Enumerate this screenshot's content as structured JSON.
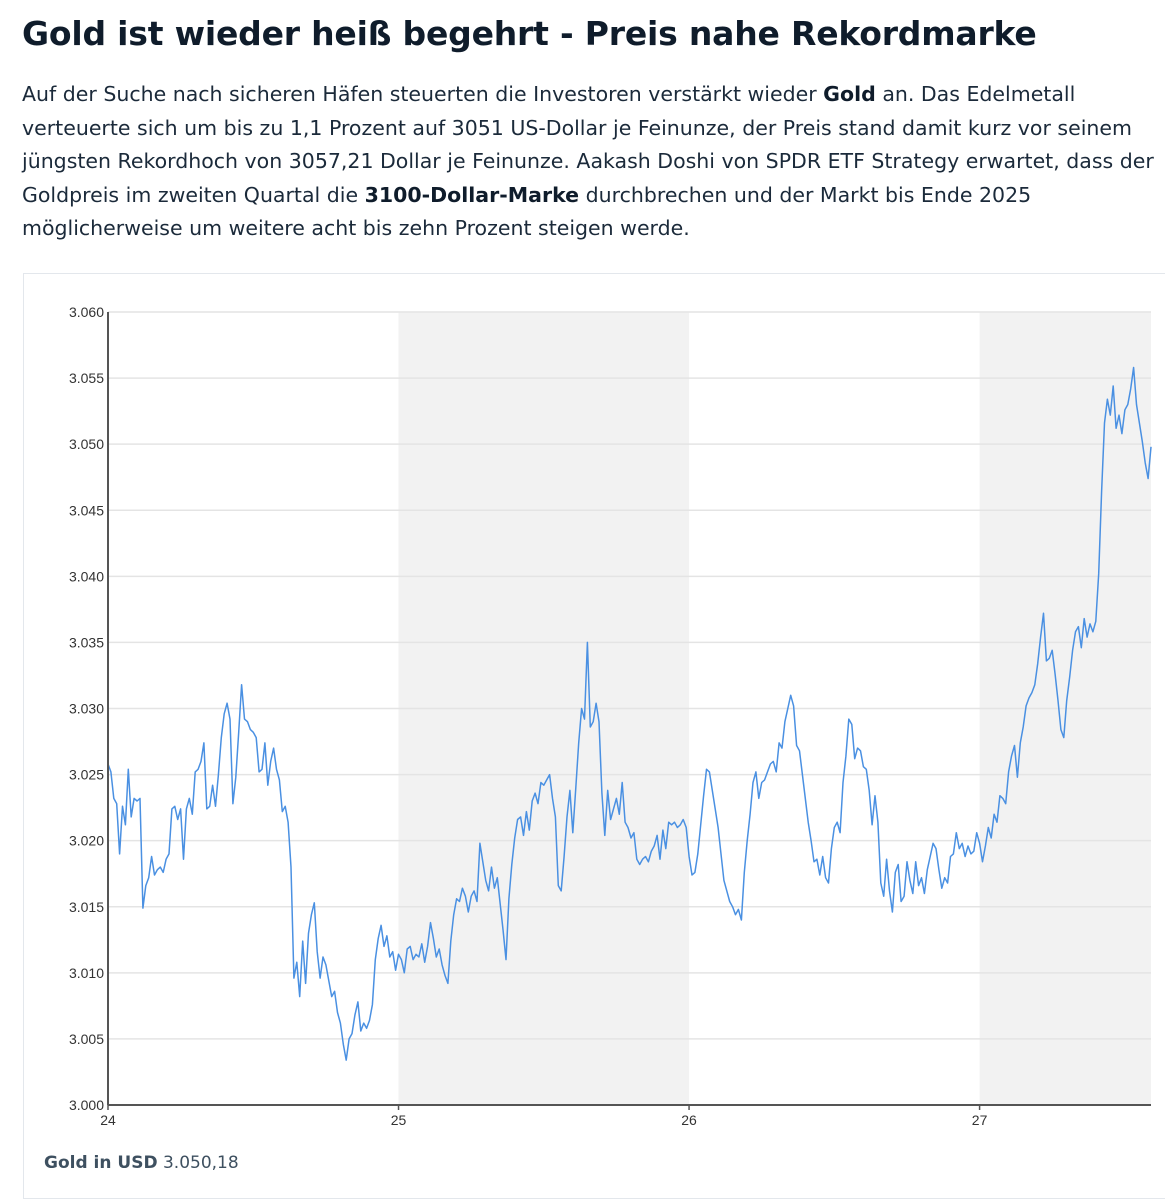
{
  "article": {
    "headline": "Gold ist wieder heiß begehrt - Preis nahe Rekordmarke",
    "lead_parts": [
      {
        "text": "Auf der Suche nach sicheren Häfen steuerten die Investoren verstärkt wieder ",
        "bold": false
      },
      {
        "text": "Gold",
        "bold": true
      },
      {
        "text": " an. Das Edelmetall verteuerte sich um bis zu 1,1 Prozent auf 3051 US-Dollar je Feinunze, der Preis stand damit kurz vor seinem jüngsten Rekordhoch von 3057,21 Dollar je Feinunze. Aakash Doshi von SPDR ETF Strategy erwartet, dass der Goldpreis im zweiten Quartal die ",
        "bold": false
      },
      {
        "text": "3100-Dollar-Marke",
        "bold": true
      },
      {
        "text": " durchbrechen und der Markt bis Ende 2025 möglicherweise um weitere acht bis zehn Prozent steigen werde.",
        "bold": false
      }
    ]
  },
  "caption": {
    "label": "Gold in USD",
    "value": "3.050,18"
  },
  "chart_data": {
    "type": "line",
    "title": "",
    "xlabel": "",
    "ylabel": "",
    "series_name": "Gold in USD",
    "line_color": "#4a90e2",
    "band_color": "#f2f2f2",
    "grid": true,
    "xlim": [
      24,
      27.59
    ],
    "ylim": [
      3000,
      3060
    ],
    "x_ticks": [
      24,
      25,
      26,
      27
    ],
    "x_tick_labels": [
      "24",
      "25",
      "26",
      "27"
    ],
    "y_ticks": [
      3000,
      3005,
      3010,
      3015,
      3020,
      3025,
      3030,
      3035,
      3040,
      3045,
      3050,
      3055,
      3060
    ],
    "y_tick_labels": [
      "3.000",
      "3.005",
      "3.010",
      "3.015",
      "3.020",
      "3.025",
      "3.030",
      "3.035",
      "3.040",
      "3.045",
      "3.050",
      "3.055",
      "3.060"
    ],
    "shaded_bands": [
      [
        25,
        26
      ],
      [
        27,
        27.59
      ]
    ],
    "x": [
      24.0,
      24.01,
      24.02,
      24.03,
      24.04,
      24.05,
      24.06,
      24.07,
      24.08,
      24.09,
      24.1,
      24.11,
      24.12,
      24.13,
      24.14,
      24.15,
      24.16,
      24.17,
      24.18,
      24.19,
      24.2,
      24.21,
      24.22,
      24.23,
      24.24,
      24.25,
      24.26,
      24.27,
      24.28,
      24.29,
      24.3,
      24.31,
      24.32,
      24.33,
      24.34,
      24.35,
      24.36,
      24.37,
      24.38,
      24.39,
      24.4,
      24.41,
      24.42,
      24.43,
      24.44,
      24.45,
      24.46,
      24.47,
      24.48,
      24.49,
      24.5,
      24.51,
      24.52,
      24.53,
      24.54,
      24.55,
      24.56,
      24.57,
      24.58,
      24.59,
      24.6,
      24.61,
      24.62,
      24.63,
      24.64,
      24.65,
      24.66,
      24.67,
      24.68,
      24.69,
      24.7,
      24.71,
      24.72,
      24.73,
      24.74,
      24.75,
      24.76,
      24.77,
      24.78,
      24.79,
      24.8,
      24.81,
      24.82,
      24.83,
      24.84,
      24.85,
      24.86,
      24.87,
      24.88,
      24.89,
      24.9,
      24.91,
      24.92,
      24.93,
      24.94,
      24.95,
      24.96,
      24.97,
      24.98,
      24.99,
      25.0,
      25.01,
      25.02,
      25.03,
      25.04,
      25.05,
      25.06,
      25.07,
      25.08,
      25.09,
      25.1,
      25.11,
      25.12,
      25.13,
      25.14,
      25.15,
      25.16,
      25.17,
      25.18,
      25.19,
      25.2,
      25.21,
      25.22,
      25.23,
      25.24,
      25.25,
      25.26,
      25.27,
      25.28,
      25.29,
      25.3,
      25.31,
      25.32,
      25.33,
      25.34,
      25.35,
      25.36,
      25.37,
      25.38,
      25.39,
      25.4,
      25.41,
      25.42,
      25.43,
      25.44,
      25.45,
      25.46,
      25.47,
      25.48,
      25.49,
      25.5,
      25.51,
      25.52,
      25.53,
      25.54,
      25.55,
      25.56,
      25.57,
      25.58,
      25.59,
      25.6,
      25.61,
      25.62,
      25.63,
      25.64,
      25.65,
      25.66,
      25.67,
      25.68,
      25.69,
      25.7,
      25.71,
      25.72,
      25.73,
      25.74,
      25.75,
      25.76,
      25.77,
      25.78,
      25.79,
      25.8,
      25.81,
      25.82,
      25.83,
      25.84,
      25.85,
      25.86,
      25.87,
      25.88,
      25.89,
      25.9,
      25.91,
      25.92,
      25.93,
      25.94,
      25.95,
      25.96,
      25.97,
      25.98,
      25.99,
      26.0,
      26.01,
      26.02,
      26.03,
      26.04,
      26.05,
      26.06,
      26.07,
      26.08,
      26.09,
      26.1,
      26.11,
      26.12,
      26.13,
      26.14,
      26.15,
      26.16,
      26.17,
      26.18,
      26.19,
      26.2,
      26.21,
      26.22,
      26.23,
      26.24,
      26.25,
      26.26,
      26.27,
      26.28,
      26.29,
      26.3,
      26.31,
      26.32,
      26.33,
      26.34,
      26.35,
      26.36,
      26.37,
      26.38,
      26.39,
      26.4,
      26.41,
      26.42,
      26.43,
      26.44,
      26.45,
      26.46,
      26.47,
      26.48,
      26.49,
      26.5,
      26.51,
      26.52,
      26.53,
      26.54,
      26.55,
      26.56,
      26.57,
      26.58,
      26.59,
      26.6,
      26.61,
      26.62,
      26.63,
      26.64,
      26.65,
      26.66,
      26.67,
      26.68,
      26.69,
      26.7,
      26.71,
      26.72,
      26.73,
      26.74,
      26.75,
      26.76,
      26.77,
      26.78,
      26.79,
      26.8,
      26.81,
      26.82,
      26.83,
      26.84,
      26.85,
      26.86,
      26.87,
      26.88,
      26.89,
      26.9,
      26.91,
      26.92,
      26.93,
      26.94,
      26.95,
      26.96,
      26.97,
      26.98,
      26.99,
      27.0,
      27.01,
      27.02,
      27.03,
      27.04,
      27.05,
      27.06,
      27.07,
      27.08,
      27.09,
      27.1,
      27.11,
      27.12,
      27.13,
      27.14,
      27.15,
      27.16,
      27.17,
      27.18,
      27.19,
      27.2,
      27.21,
      27.22,
      27.23,
      27.24,
      27.25,
      27.26,
      27.27,
      27.28,
      27.29,
      27.3,
      27.31,
      27.32,
      27.33,
      27.34,
      27.35,
      27.36,
      27.37,
      27.38,
      27.39,
      27.4,
      27.41,
      27.42,
      27.43,
      27.44,
      27.45,
      27.46,
      27.47,
      27.48,
      27.49,
      27.5,
      27.51,
      27.52,
      27.53,
      27.54,
      27.55,
      27.56,
      27.57,
      27.58,
      27.59
    ],
    "values": [
      3025.8,
      3025.2,
      3023.2,
      3022.8,
      3019.0,
      3022.6,
      3021.2,
      3025.4,
      3021.8,
      3023.2,
      3023.0,
      3023.2,
      3014.9,
      3016.6,
      3017.2,
      3018.8,
      3017.4,
      3017.8,
      3018.0,
      3017.6,
      3018.6,
      3019.0,
      3022.4,
      3022.6,
      3021.6,
      3022.4,
      3018.6,
      3022.4,
      3023.2,
      3022.0,
      3025.2,
      3025.4,
      3026.0,
      3027.4,
      3022.4,
      3022.6,
      3024.2,
      3022.6,
      3025.0,
      3027.8,
      3029.6,
      3030.4,
      3029.2,
      3022.8,
      3024.8,
      3028.2,
      3031.8,
      3029.2,
      3029.0,
      3028.4,
      3028.2,
      3027.8,
      3025.2,
      3025.4,
      3027.4,
      3024.2,
      3026.0,
      3027.0,
      3025.4,
      3024.6,
      3022.2,
      3022.6,
      3021.4,
      3018.0,
      3009.6,
      3010.8,
      3008.2,
      3012.4,
      3009.2,
      3013.0,
      3014.4,
      3015.3,
      3011.6,
      3009.6,
      3011.2,
      3010.6,
      3009.4,
      3008.2,
      3008.6,
      3007.0,
      3006.2,
      3004.6,
      3003.4,
      3005.0,
      3005.4,
      3006.8,
      3007.8,
      3005.6,
      3006.2,
      3005.8,
      3006.4,
      3007.6,
      3011.0,
      3012.6,
      3013.6,
      3012.0,
      3012.8,
      3011.2,
      3011.6,
      3010.2,
      3011.4,
      3011.0,
      3010.0,
      3011.8,
      3012.0,
      3011.0,
      3011.4,
      3011.2,
      3012.2,
      3010.8,
      3012.0,
      3013.8,
      3012.6,
      3011.2,
      3011.8,
      3010.6,
      3009.8,
      3009.2,
      3012.4,
      3014.4,
      3015.6,
      3015.4,
      3016.4,
      3015.8,
      3014.6,
      3015.8,
      3016.2,
      3015.4,
      3019.8,
      3018.4,
      3017.0,
      3016.2,
      3018.0,
      3016.4,
      3017.2,
      3015.2,
      3013.2,
      3011.0,
      3015.6,
      3018.2,
      3020.2,
      3021.6,
      3021.8,
      3020.4,
      3022.2,
      3020.8,
      3023.0,
      3023.6,
      3022.8,
      3024.4,
      3024.2,
      3024.6,
      3025.0,
      3023.2,
      3021.8,
      3016.6,
      3016.2,
      3018.8,
      3021.8,
      3023.8,
      3020.6,
      3024.0,
      3027.4,
      3030.0,
      3029.2,
      3035.0,
      3028.6,
      3029.0,
      3030.4,
      3029.0,
      3023.6,
      3020.4,
      3023.8,
      3021.6,
      3022.4,
      3023.2,
      3022.0,
      3024.4,
      3021.4,
      3021.0,
      3020.2,
      3020.6,
      3018.6,
      3018.2,
      3018.6,
      3018.8,
      3018.4,
      3019.2,
      3019.6,
      3020.4,
      3018.6,
      3020.8,
      3019.4,
      3021.4,
      3021.2,
      3021.4,
      3021.0,
      3021.2,
      3021.6,
      3021.0,
      3018.8,
      3017.4,
      3017.6,
      3019.0,
      3021.2,
      3023.4,
      3025.4,
      3025.2,
      3023.8,
      3022.4,
      3021.0,
      3019.0,
      3017.0,
      3016.2,
      3015.4,
      3015.0,
      3014.4,
      3014.8,
      3014.0,
      3017.6,
      3020.0,
      3022.0,
      3024.4,
      3025.2,
      3023.2,
      3024.4,
      3024.6,
      3025.2,
      3025.8,
      3026.0,
      3025.2,
      3027.4,
      3027.0,
      3029.0,
      3030.0,
      3031.0,
      3030.2,
      3027.2,
      3026.8,
      3025.0,
      3023.2,
      3021.4,
      3020.0,
      3018.4,
      3018.6,
      3017.4,
      3018.8,
      3017.2,
      3016.8,
      3019.4,
      3021.0,
      3021.4,
      3020.6,
      3024.4,
      3026.4,
      3029.2,
      3028.8,
      3026.2,
      3027.0,
      3026.8,
      3025.6,
      3025.4,
      3023.8,
      3021.2,
      3023.4,
      3021.4,
      3016.8,
      3015.8,
      3018.6,
      3016.2,
      3014.6,
      3017.6,
      3018.2,
      3015.4,
      3015.8,
      3018.4,
      3017.0,
      3016.0,
      3018.4,
      3016.6,
      3017.2,
      3016.0,
      3017.8,
      3018.8,
      3019.8,
      3019.4,
      3017.8,
      3016.4,
      3017.2,
      3016.8,
      3018.8,
      3019.0,
      3020.6,
      3019.4,
      3019.8,
      3018.8,
      3019.6,
      3019.0,
      3019.2,
      3020.6,
      3019.8,
      3018.4,
      3019.6,
      3021.0,
      3020.2,
      3022.0,
      3021.4,
      3023.4,
      3023.2,
      3022.8,
      3025.2,
      3026.4,
      3027.2,
      3024.8,
      3027.4,
      3028.6,
      3030.2,
      3030.8,
      3031.2,
      3031.8,
      3033.4,
      3035.4,
      3037.2,
      3033.6,
      3033.8,
      3034.4,
      3032.6,
      3030.6,
      3028.4,
      3027.8,
      3030.6,
      3032.4,
      3034.4,
      3035.8,
      3036.2,
      3034.6,
      3036.8,
      3035.4,
      3036.4,
      3035.8,
      3036.6,
      3040.2,
      3046.4,
      3051.6,
      3053.4,
      3052.2,
      3054.4,
      3051.2,
      3052.2,
      3050.8,
      3052.6,
      3053.0,
      3054.2,
      3055.8,
      3053.0,
      3051.6,
      3050.2,
      3048.6,
      3047.4,
      3049.8,
      3050.4,
      3050.18
    ]
  }
}
